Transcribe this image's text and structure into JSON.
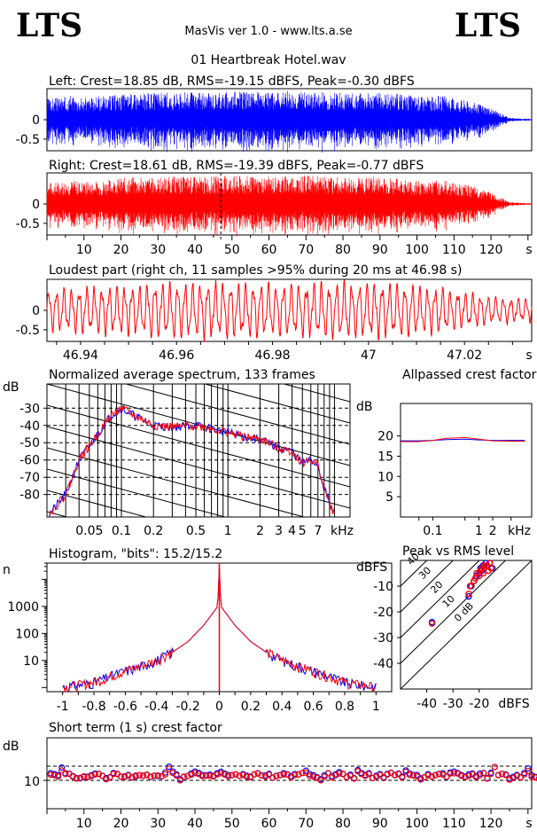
{
  "header": {
    "logo_left": "LTS",
    "logo_right": "LTS",
    "app_title": "MasVis ver 1.0 - www.lts.a.se",
    "file_name": "01 Heartbreak Hotel.wav"
  },
  "colors": {
    "left": "#0000ff",
    "right": "#ff0000",
    "grid": "#000000"
  },
  "chart_data": [
    {
      "id": "left_waveform",
      "type": "line",
      "title": "Left: Crest=18.85 dB, RMS=-19.15 dBFS, Peak=-0.30 dBFS",
      "ylim": [
        -0.8,
        0.8
      ],
      "yticks": [
        "0",
        "-0.5"
      ],
      "xlim": [
        0,
        131
      ],
      "series": [
        {
          "color": "#0000ff",
          "peak_envelope": [
            0.55,
            0.62,
            0.58,
            0.66,
            0.7,
            0.68,
            0.72,
            0.7,
            0.74,
            0.72,
            0.7,
            0.75,
            0.73,
            0.7,
            0.68,
            0.72,
            0.66,
            0.6,
            0.62,
            0.5,
            0.35,
            0.05,
            0.02
          ]
        }
      ]
    },
    {
      "id": "right_waveform",
      "type": "line",
      "title": "Right: Crest=18.61 dB, RMS=-19.39 dBFS, Peak=-0.77 dBFS",
      "ylim": [
        -0.8,
        0.8
      ],
      "yticks": [
        "0",
        "-0.5"
      ],
      "xlim": [
        0,
        131
      ],
      "xticks": [
        10,
        20,
        30,
        40,
        50,
        60,
        70,
        80,
        90,
        100,
        110,
        120
      ],
      "xunit": "s",
      "marker_x": 46.98,
      "series": [
        {
          "color": "#ff0000",
          "peak_envelope": [
            0.55,
            0.62,
            0.58,
            0.66,
            0.7,
            0.68,
            0.72,
            0.7,
            0.74,
            0.72,
            0.7,
            0.75,
            0.73,
            0.7,
            0.68,
            0.72,
            0.66,
            0.6,
            0.62,
            0.5,
            0.35,
            0.05,
            0.02
          ]
        }
      ]
    },
    {
      "id": "loudest_part",
      "type": "line",
      "title": "Loudest part (right ch, 11 samples >95% during 20 ms at 46.98 s)",
      "ylim": [
        -0.8,
        0.8
      ],
      "yticks": [
        "0",
        "-0.5"
      ],
      "xlim": [
        46.933,
        47.034
      ],
      "xticks": [
        46.94,
        46.96,
        46.98,
        47,
        47.02
      ],
      "xunit": "s",
      "series": [
        {
          "color": "#ff0000",
          "cycles": 64,
          "amplitude_profile": [
            0.55,
            0.6,
            0.65,
            0.7,
            0.72,
            0.7,
            0.68,
            0.7,
            0.72,
            0.68,
            0.55,
            0.35,
            0.3
          ]
        }
      ]
    },
    {
      "id": "avg_spectrum",
      "type": "line",
      "title": "Normalized average spectrum, 133 frames",
      "ylabel": "dB",
      "yticks": [
        -30,
        -40,
        -50,
        -60,
        -70,
        -80
      ],
      "ylim": [
        -93,
        -16
      ],
      "xscale": "log",
      "xticks": [
        "0.05",
        "0.1",
        "0.2",
        "0.5",
        "1",
        "2",
        "3",
        "4",
        "5",
        "7"
      ],
      "xunit": "kHz",
      "series": [
        {
          "name": "",
          "color": "#0000ff",
          "x": [
            0.02,
            0.03,
            0.04,
            0.05,
            0.06,
            0.08,
            0.1,
            0.12,
            0.15,
            0.2,
            0.3,
            0.5,
            1,
            1.5,
            2,
            3,
            4,
            5,
            6,
            7,
            8,
            9,
            10
          ],
          "y": [
            -93,
            -80,
            -60,
            -52,
            -45,
            -34,
            -30,
            -33,
            -36,
            -40,
            -41,
            -40,
            -44,
            -47,
            -48,
            -53,
            -55,
            -62,
            -60,
            -63,
            -76,
            -85,
            -92
          ]
        },
        {
          "name": "",
          "color": "#ff0000",
          "x": [
            0.02,
            0.03,
            0.04,
            0.05,
            0.06,
            0.08,
            0.1,
            0.12,
            0.15,
            0.2,
            0.3,
            0.5,
            1,
            1.5,
            2,
            3,
            4,
            5,
            6,
            7,
            8,
            9,
            10
          ],
          "y": [
            -93,
            -80,
            -60,
            -52,
            -45,
            -34,
            -30,
            -33,
            -36,
            -40,
            -41,
            -40,
            -44,
            -47,
            -48,
            -53,
            -55,
            -62,
            -60,
            -63,
            -76,
            -85,
            -92
          ]
        }
      ]
    },
    {
      "id": "allpassed_crest",
      "type": "line",
      "title": "Allpassed crest factor",
      "ylabel": "dB",
      "yticks": [
        20,
        15,
        10,
        5
      ],
      "ylim": [
        0,
        28
      ],
      "xscale": "log",
      "xticks": [
        "0.1",
        "1",
        "2"
      ],
      "xunit": "kHz",
      "series": [
        {
          "name": "",
          "color": "#0000ff",
          "x": [
            0.02,
            0.05,
            0.1,
            0.2,
            0.5,
            1,
            2,
            5,
            10
          ],
          "y": [
            18.8,
            18.8,
            18.9,
            19.1,
            19.2,
            19,
            18.9,
            18.9,
            18.9
          ]
        },
        {
          "name": "",
          "color": "#ff0000",
          "x": [
            0.02,
            0.05,
            0.1,
            0.2,
            0.5,
            1,
            2,
            5,
            10
          ],
          "y": [
            18.6,
            18.6,
            18.9,
            19.4,
            19.6,
            19.2,
            18.8,
            18.7,
            18.7
          ]
        }
      ]
    },
    {
      "id": "histogram",
      "type": "line",
      "title": "Histogram, \"bits\": 15.2/15.2",
      "ylabel": "n",
      "yscale": "log",
      "yticks": [
        "1000",
        "100",
        "10"
      ],
      "ylim": [
        0.7,
        40000
      ],
      "xlim": [
        -1.1,
        1.1
      ],
      "xticks": [
        "-1",
        "-0.8",
        "-0.6",
        "-0.4",
        "-0.2",
        "0",
        "0.2",
        "0.4",
        "0.6",
        "0.8",
        "1"
      ],
      "series": [
        {
          "name": "",
          "color": "#0000ff",
          "x": [
            -1.0,
            -0.9,
            -0.8,
            -0.7,
            -0.6,
            -0.5,
            -0.4,
            -0.3,
            -0.2,
            -0.1,
            -0.01,
            0,
            0.01,
            0.1,
            0.2,
            0.3,
            0.4,
            0.5,
            0.6,
            0.7,
            0.8,
            0.9,
            1.0
          ],
          "y": [
            1,
            1.2,
            1.5,
            2.5,
            4,
            6,
            10,
            20,
            50,
            200,
            1000,
            30000,
            1000,
            200,
            50,
            20,
            10,
            6,
            4,
            2.5,
            1.5,
            1.2,
            1
          ]
        },
        {
          "name": "",
          "color": "#ff0000",
          "x": [
            -1.0,
            -0.9,
            -0.8,
            -0.7,
            -0.6,
            -0.5,
            -0.4,
            -0.3,
            -0.2,
            -0.1,
            -0.01,
            0,
            0.01,
            0.1,
            0.2,
            0.3,
            0.4,
            0.5,
            0.6,
            0.7,
            0.8,
            0.9,
            1.0
          ],
          "y": [
            1,
            1.2,
            1.5,
            2.5,
            4,
            6,
            10,
            20,
            50,
            200,
            1000,
            30000,
            1000,
            200,
            50,
            20,
            10,
            6,
            4,
            2.5,
            1.5,
            1.2,
            1
          ]
        }
      ]
    },
    {
      "id": "peak_vs_rms",
      "type": "scatter",
      "title": "Peak vs RMS level",
      "ylabel": "dBFS",
      "xlabel": "dBFS",
      "xlim": [
        -50,
        0
      ],
      "ylim": [
        -50,
        0
      ],
      "xticks": [
        -40,
        -30,
        -20
      ],
      "yticks": [
        -10,
        -20,
        -30,
        -40
      ],
      "crest_lines": [
        "40",
        "30",
        "20",
        "10",
        "0 dB"
      ],
      "series": [
        {
          "name": "",
          "color": "#0000ff",
          "x": [
            -38,
            -24,
            -23,
            -22,
            -21,
            -20,
            -19.5,
            -19,
            -18.5,
            -18,
            -17.5,
            -17,
            -16,
            -15
          ],
          "y": [
            -24,
            -14,
            -10,
            -8,
            -6,
            -5,
            -3,
            -4,
            -2,
            -3,
            -1,
            -2,
            -1,
            -3
          ]
        },
        {
          "name": "",
          "color": "#ff0000",
          "x": [
            -38,
            -24,
            -23.5,
            -22,
            -21.5,
            -21,
            -20,
            -19.5,
            -19,
            -18.5,
            -18,
            -17,
            -16.5,
            -16,
            -15.5
          ],
          "y": [
            -24.5,
            -13,
            -10,
            -8,
            -7,
            -5,
            -6,
            -4,
            -3,
            -5,
            -2,
            -2,
            -4,
            -1,
            -3
          ]
        }
      ]
    },
    {
      "id": "short_term_crest",
      "type": "scatter",
      "title": "Short term (1 s) crest factor",
      "ylabel": "dB",
      "xlim": [
        0,
        131
      ],
      "ylim": [
        0,
        25
      ],
      "yticks": [
        "10"
      ],
      "dashed_lines": [
        10,
        15
      ],
      "xticks": [
        10,
        20,
        30,
        40,
        50,
        60,
        70,
        80,
        90,
        100,
        110,
        120
      ],
      "xunit": "s",
      "series": [
        {
          "name": "",
          "color": "#0000ff",
          "values": [
            12.5,
            12.2,
            11.8,
            14.5,
            12.5,
            12.3,
            11.5,
            10.8,
            10.7,
            11.2,
            11.3,
            11.8,
            12.4,
            12.3,
            11.6,
            10.8,
            11.1,
            12.6,
            12.2,
            11.3,
            11.4,
            11.9,
            11.0,
            11.4,
            11.8,
            11.6,
            12.0,
            11.2,
            11.6,
            11.5,
            11.4,
            12.8,
            14.8,
            13.1,
            12.1,
            10.4,
            11.3,
            11.5,
            12.4,
            13.1,
            12.6,
            11.9,
            11.8,
            12.0,
            11.6,
            12.5,
            13.0,
            12.4,
            11.9,
            11.8,
            12.1,
            11.6,
            12.2,
            11.6,
            11.3,
            12.1,
            12.5,
            11.8,
            11.7,
            12.3,
            11.0,
            11.6,
            11.8,
            12.5,
            12.1,
            11.5,
            12.2,
            12.1,
            12.6,
            13.4,
            12.2,
            11.8,
            11.1,
            10.4,
            11.8,
            12.5,
            11.5,
            12.1,
            12.9,
            12.2,
            11.2,
            12.0,
            10.8,
            13.6,
            12.6,
            11.9,
            12.5,
            10.8,
            11.6,
            12.2,
            11.1,
            12.3,
            12.7,
            11.9,
            12.4,
            11.3,
            13.5,
            12.4,
            11.9,
            11.9,
            10.7,
            11.1,
            12.2,
            11.4,
            11.9,
            12.2,
            12.5,
            11.2,
            12.8,
            13.1,
            12.6,
            11.9,
            11.3,
            12.1,
            12.4,
            11.5,
            12.4,
            12.6,
            10.8,
            12.7,
            14.7,
            11.9,
            12.3,
            12.1,
            10.7,
            11.2,
            11.9,
            11.1,
            12.6,
            14.2,
            11.8,
            11.2,
            10.7
          ]
        },
        {
          "name": "",
          "color": "#ff0000",
          "values": [
            12.0,
            11.8,
            11.3,
            13.5,
            12.2,
            12.4,
            11.3,
            10.6,
            10.9,
            11.4,
            11.1,
            11.5,
            12.1,
            12.2,
            11.5,
            10.4,
            11.0,
            12.3,
            12.3,
            11.3,
            11.2,
            11.7,
            11.1,
            11.7,
            11.8,
            11.7,
            11.9,
            11.3,
            11.7,
            11.7,
            11.5,
            12.1,
            14.1,
            12.6,
            11.7,
            10.0,
            11.2,
            11.5,
            12.0,
            12.6,
            12.2,
            11.5,
            11.6,
            11.6,
            11.4,
            12.1,
            12.5,
            12.1,
            11.4,
            11.9,
            12.1,
            11.6,
            11.9,
            11.3,
            11.1,
            12.1,
            12.4,
            11.7,
            11.3,
            12.0,
            10.9,
            11.5,
            11.9,
            12.1,
            12.0,
            11.0,
            11.9,
            12.1,
            12.6,
            12.7,
            11.6,
            11.3,
            10.9,
            10.0,
            11.3,
            12.5,
            11.0,
            11.8,
            12.4,
            12.3,
            11.1,
            11.6,
            10.6,
            13.2,
            12.2,
            11.6,
            12.2,
            10.8,
            11.3,
            11.9,
            10.8,
            12.1,
            12.6,
            11.8,
            12.2,
            11.0,
            13.0,
            11.9,
            11.7,
            11.4,
            10.3,
            11.1,
            11.8,
            11.3,
            11.8,
            12.3,
            12.0,
            11.3,
            12.4,
            12.5,
            12.4,
            11.6,
            11.1,
            11.6,
            12.1,
            11.1,
            11.8,
            12.5,
            10.6,
            12.3,
            14.7,
            11.8,
            12.3,
            11.9,
            10.2,
            10.8,
            11.6,
            11.0,
            12.1,
            13.3,
            11.2,
            11.0,
            10.4
          ]
        }
      ]
    }
  ]
}
